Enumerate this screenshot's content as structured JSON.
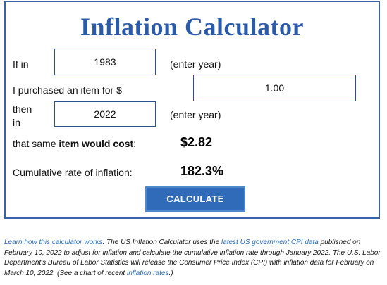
{
  "title": "Inflation Calculator",
  "form": {
    "if_in_label": "If in",
    "start_year": "1983",
    "enter_year_hint_1": "(enter year)",
    "purchased_label": "I purchased an item for $",
    "amount": "1.00",
    "then_label": "then",
    "in_label": "in",
    "end_year": "2022",
    "enter_year_hint_2": "(enter year)",
    "cost_label_prefix": "that same ",
    "cost_label_link": "item would cost",
    "cost_label_suffix": ":",
    "cost_result": "$2.82",
    "cumulative_label": "Cumulative rate of inflation:",
    "cumulative_result": "182.3%",
    "calculate_button": "CALCULATE"
  },
  "footnote": {
    "link_learn": "Learn how this calculator works",
    "text_1": ". The US Inflation Calculator uses the ",
    "link_cpi": "latest US government CPI data",
    "text_2": " published on February 10, 2022 to adjust for inflation and calculate the cumulative inflation rate through January 2022. The U.S. Labor Department's Bureau of Labor Statistics will release the Consumer Price Index (CPI) with inflation data for February on March 10, 2022. (See a chart of recent ",
    "link_rates": "inflation rates",
    "text_3": ".)"
  },
  "colors": {
    "title": "#2b5aa8",
    "border": "#3a62a8",
    "button": "#2f6bb8",
    "link": "#2e6bb5"
  }
}
